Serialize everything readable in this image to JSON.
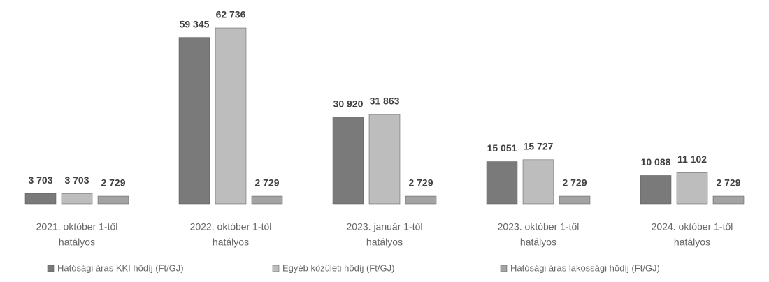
{
  "chart_data": {
    "type": "bar",
    "categories": [
      [
        "2021. október 1-től",
        "hatályos"
      ],
      [
        "2022. október 1-től",
        "hatályos"
      ],
      [
        "2023. január 1-től",
        "hatályos"
      ],
      [
        "2023. október 1-től",
        "hatályos"
      ],
      [
        "2024. október 1-től",
        "hatályos"
      ]
    ],
    "series": [
      {
        "name": "Hatósági áras KKI hődíj (Ft/GJ)",
        "color": "#7a7a7a",
        "values": [
          3703,
          59345,
          30920,
          15051,
          10088
        ],
        "value_labels": [
          "3 703",
          "59 345",
          "30 920",
          "15 051",
          "10 088"
        ]
      },
      {
        "name": "Egyéb közületi hődíj (Ft/GJ)",
        "color": "#bdbdbd",
        "values": [
          3703,
          62736,
          31863,
          15727,
          11102
        ],
        "value_labels": [
          "3 703",
          "62 736",
          "31 863",
          "15 727",
          "11 102"
        ]
      },
      {
        "name": "Hatósági áras lakossági hődíj (Ft/GJ)",
        "color": "#a3a3a3",
        "values": [
          2729,
          2729,
          2729,
          2729,
          2729
        ],
        "value_labels": [
          "2 729",
          "2 729",
          "2 729",
          "2 729",
          "2 729"
        ]
      }
    ],
    "legend": "bottom"
  }
}
